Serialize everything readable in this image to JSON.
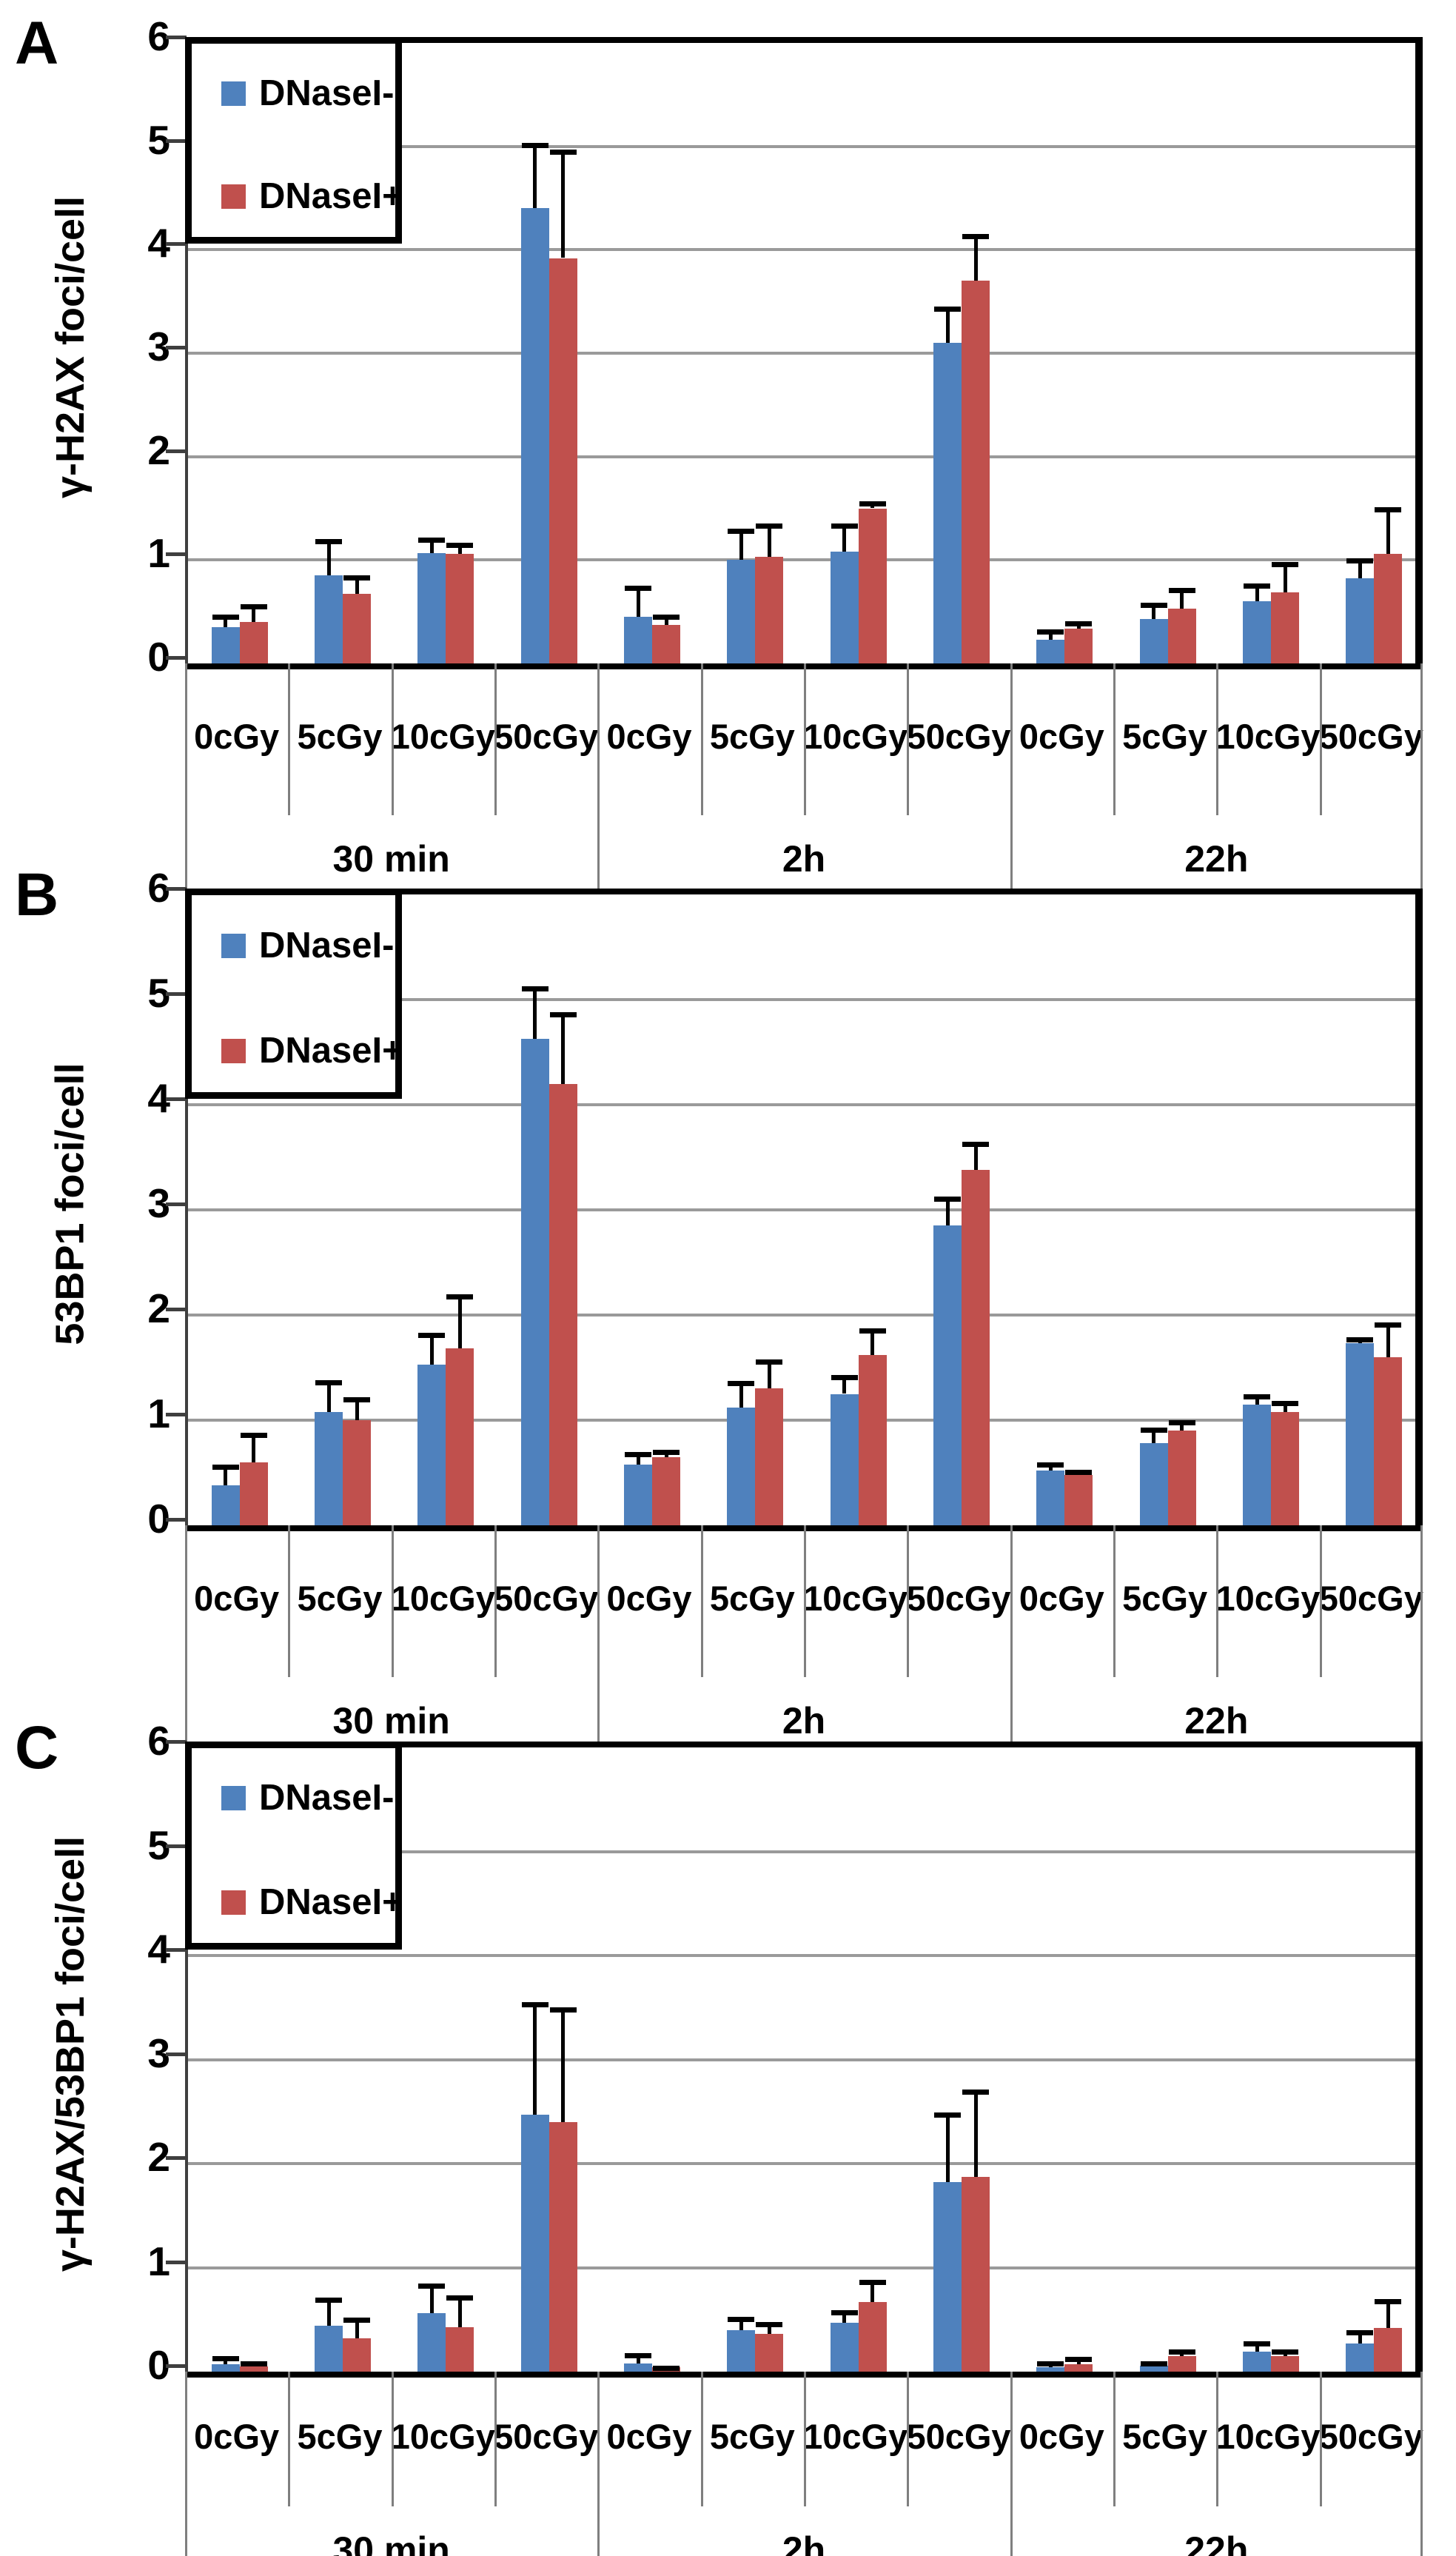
{
  "figure": {
    "background": "#ffffff",
    "grid_color": "#9a9a9a",
    "axis_color": "#000000",
    "separator_color": "#7f7f7f"
  },
  "legend": {
    "items": [
      {
        "label": "DNaseI-",
        "color": "#4f81bd"
      },
      {
        "label": "DNaseI+",
        "color": "#c0504d"
      }
    ]
  },
  "x_axis": {
    "dose_labels": [
      "0cGy",
      "5cGy",
      "10cGy",
      "50cGy"
    ],
    "time_labels": [
      "30 min",
      "2h",
      "22h"
    ]
  },
  "chart_data": [
    {
      "type": "bar",
      "panel": "A",
      "ylabel": "γ-H2AX foci/cell",
      "ylim": [
        0,
        6
      ],
      "yticks": [
        0,
        1,
        2,
        3,
        4,
        5,
        6
      ],
      "grid": true,
      "legend_position": "top-left",
      "groups": [
        "30 min",
        "2h",
        "22h"
      ],
      "categories": [
        "0cGy",
        "5cGy",
        "10cGy",
        "50cGy",
        "0cGy",
        "5cGy",
        "10cGy",
        "50cGy",
        "0cGy",
        "5cGy",
        "10cGy",
        "50cGy"
      ],
      "series": [
        {
          "name": "DNaseI-",
          "color": "#4f81bd",
          "values": [
            0.35,
            0.85,
            1.07,
            4.4,
            0.45,
            1.0,
            1.08,
            3.1,
            0.23,
            0.43,
            0.6,
            0.82
          ],
          "errors": [
            0.12,
            0.35,
            0.15,
            0.63,
            0.3,
            0.3,
            0.27,
            0.35,
            0.1,
            0.16,
            0.17,
            0.2
          ]
        },
        {
          "name": "DNaseI+",
          "color": "#c0504d",
          "values": [
            0.4,
            0.67,
            1.06,
            3.92,
            0.37,
            1.03,
            1.5,
            3.7,
            0.34,
            0.53,
            0.69,
            1.06
          ],
          "errors": [
            0.17,
            0.18,
            0.11,
            1.05,
            0.1,
            0.32,
            0.07,
            0.45,
            0.07,
            0.2,
            0.29,
            0.45
          ]
        }
      ]
    },
    {
      "type": "bar",
      "panel": "B",
      "ylabel": "53BP1 foci/cell",
      "ylim": [
        0,
        6
      ],
      "yticks": [
        0,
        1,
        2,
        3,
        4,
        5,
        6
      ],
      "grid": true,
      "legend_position": "top-left",
      "groups": [
        "30 min",
        "2h",
        "22h"
      ],
      "categories": [
        "0cGy",
        "5cGy",
        "10cGy",
        "50cGy",
        "0cGy",
        "5cGy",
        "10cGy",
        "50cGy",
        "0cGy",
        "5cGy",
        "10cGy",
        "50cGy"
      ],
      "series": [
        {
          "name": "DNaseI-",
          "color": "#4f81bd",
          "values": [
            0.38,
            1.08,
            1.53,
            4.63,
            0.58,
            1.12,
            1.25,
            2.85,
            0.52,
            0.78,
            1.15,
            1.73
          ],
          "errors": [
            0.2,
            0.3,
            0.3,
            0.5,
            0.12,
            0.25,
            0.18,
            0.28,
            0.08,
            0.15,
            0.1,
            0.06
          ]
        },
        {
          "name": "DNaseI+",
          "color": "#c0504d",
          "values": [
            0.6,
            1.0,
            1.68,
            4.2,
            0.65,
            1.3,
            1.62,
            3.38,
            0.48,
            0.9,
            1.08,
            1.6
          ],
          "errors": [
            0.28,
            0.22,
            0.52,
            0.68,
            0.07,
            0.28,
            0.25,
            0.27,
            0.05,
            0.1,
            0.1,
            0.33
          ]
        }
      ]
    },
    {
      "type": "bar",
      "panel": "C",
      "ylabel": "γ-H2AX/53BP1 foci/cell",
      "ylim": [
        0,
        6
      ],
      "yticks": [
        0,
        1,
        2,
        3,
        4,
        5,
        6
      ],
      "grid": true,
      "legend_position": "top-left",
      "groups": [
        "30 min",
        "2h",
        "22h"
      ],
      "categories": [
        "0cGy",
        "5cGy",
        "10cGy",
        "50cGy",
        "0cGy",
        "5cGy",
        "10cGy",
        "50cGy",
        "0cGy",
        "5cGy",
        "10cGy",
        "50cGy"
      ],
      "series": [
        {
          "name": "DNaseI-",
          "color": "#4f81bd",
          "values": [
            0.07,
            0.44,
            0.56,
            2.47,
            0.08,
            0.4,
            0.47,
            1.82,
            0.04,
            0.06,
            0.19,
            0.27
          ],
          "errors": [
            0.08,
            0.27,
            0.29,
            1.08,
            0.1,
            0.13,
            0.12,
            0.67,
            0.06,
            0.04,
            0.1,
            0.13
          ]
        },
        {
          "name": "DNaseI+",
          "color": "#c0504d",
          "values": [
            0.05,
            0.32,
            0.43,
            2.4,
            0.04,
            0.36,
            0.67,
            1.87,
            0.07,
            0.15,
            0.15,
            0.42
          ],
          "errors": [
            0.05,
            0.2,
            0.3,
            1.1,
            0.02,
            0.12,
            0.21,
            0.84,
            0.07,
            0.06,
            0.06,
            0.28
          ]
        }
      ]
    }
  ]
}
